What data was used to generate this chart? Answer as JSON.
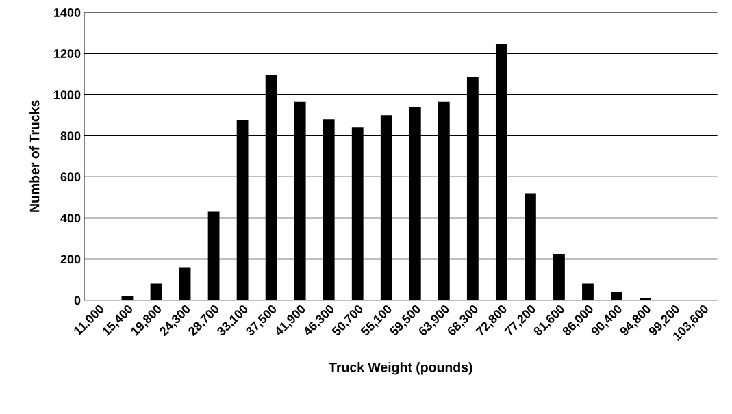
{
  "chart_data": {
    "type": "bar",
    "xlabel": "Truck Weight (pounds)",
    "ylabel": "Number of Trucks",
    "categories": [
      "11,000",
      "15,400",
      "19,800",
      "24,300",
      "28,700",
      "33,100",
      "37,500",
      "41,900",
      "46,300",
      "50,700",
      "55,100",
      "59,500",
      "63,900",
      "68,300",
      "72,800",
      "77,200",
      "81,600",
      "86,000",
      "90,400",
      "94,800",
      "99,200",
      "103,600"
    ],
    "values": [
      0,
      20,
      80,
      160,
      430,
      875,
      1095,
      965,
      880,
      840,
      900,
      940,
      965,
      1085,
      1245,
      520,
      225,
      80,
      40,
      10,
      0,
      0
    ],
    "color": "#000000",
    "ylim": [
      0,
      1400
    ],
    "yticks": [
      0,
      200,
      400,
      600,
      800,
      1000,
      1200,
      1400
    ],
    "grid": "y"
  }
}
